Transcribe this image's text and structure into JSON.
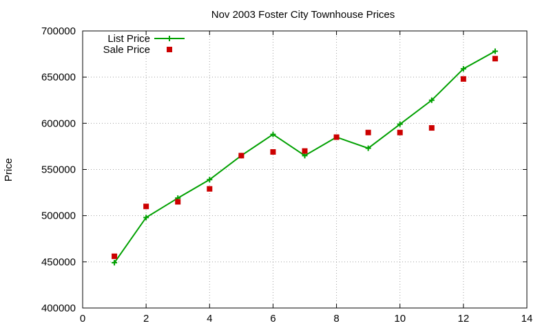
{
  "chart_data": {
    "type": "line",
    "title": "Nov 2003 Foster City Townhouse Prices",
    "xlabel": "",
    "ylabel": "Price",
    "xlim": [
      0,
      14
    ],
    "ylim": [
      400000,
      700000
    ],
    "xticks": [
      0,
      2,
      4,
      6,
      8,
      10,
      12,
      14
    ],
    "yticks": [
      400000,
      450000,
      500000,
      550000,
      600000,
      650000,
      700000
    ],
    "grid": true,
    "legend_position": "top-left",
    "series": [
      {
        "name": "List Price",
        "style": "line-with-plus-markers",
        "color": "#00a000",
        "x": [
          1,
          2,
          3,
          4,
          5,
          6,
          7,
          8,
          9,
          10,
          11,
          12,
          13
        ],
        "y": [
          449000,
          498000,
          519000,
          539000,
          565000,
          588000,
          565000,
          585000,
          573000,
          599000,
          625000,
          659000,
          678000
        ]
      },
      {
        "name": "Sale Price",
        "style": "square-markers",
        "color": "#cc0000",
        "x": [
          1,
          2,
          3,
          4,
          5,
          6,
          7,
          8,
          9,
          10,
          11,
          12,
          13
        ],
        "y": [
          456000,
          510000,
          515000,
          529000,
          565000,
          569000,
          570000,
          585000,
          590000,
          590000,
          595000,
          648000,
          670000
        ]
      }
    ]
  }
}
